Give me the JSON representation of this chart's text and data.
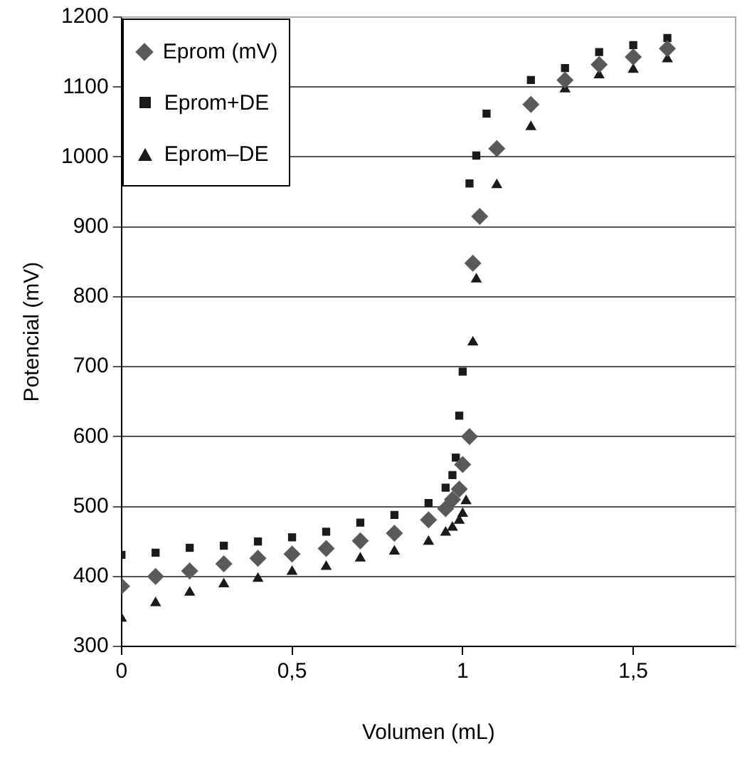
{
  "chart_data": {
    "type": "scatter",
    "xlabel": "Volumen (mL)",
    "ylabel": "Potencial (mV)",
    "xlim": [
      0,
      1.8
    ],
    "ylim": [
      300,
      1200
    ],
    "xticks": [
      {
        "value": 0,
        "label": "0"
      },
      {
        "value": 0.5,
        "label": "0,5"
      },
      {
        "value": 1,
        "label": "1"
      },
      {
        "value": 1.5,
        "label": "1,5"
      }
    ],
    "yticks": [
      300,
      400,
      500,
      600,
      700,
      800,
      900,
      1000,
      1100,
      1200
    ],
    "grid": "y",
    "legend": "top left",
    "series": [
      {
        "name": "Eprom (mV)",
        "color": "#595959",
        "marker": "diamond",
        "x": [
          0,
          0.1,
          0.2,
          0.3,
          0.4,
          0.5,
          0.6,
          0.7,
          0.8,
          0.9,
          0.95,
          0.97,
          0.99,
          1.0,
          1.02,
          1.03,
          1.05,
          1.1,
          1.2,
          1.3,
          1.4,
          1.5,
          1.6
        ],
        "values": [
          386,
          400,
          408,
          418,
          426,
          432,
          440,
          451,
          462,
          481,
          497,
          510,
          525,
          560,
          600,
          848,
          915,
          1012,
          1075,
          1110,
          1132,
          1143,
          1155
        ]
      },
      {
        "name": "Eprom+DE",
        "color": "#1a1a1a",
        "marker": "square",
        "x": [
          0,
          0.1,
          0.2,
          0.3,
          0.4,
          0.5,
          0.6,
          0.7,
          0.8,
          0.9,
          0.95,
          0.97,
          0.98,
          0.99,
          1.0,
          1.02,
          1.04,
          1.07,
          1.2,
          1.3,
          1.4,
          1.5,
          1.6
        ],
        "values": [
          431,
          434,
          441,
          444,
          450,
          456,
          464,
          477,
          488,
          505,
          527,
          545,
          570,
          630,
          693,
          962,
          1002,
          1062,
          1110,
          1127,
          1150,
          1160,
          1170
        ]
      },
      {
        "name": "Eprom–DE",
        "color": "#1a1a1a",
        "marker": "triangle",
        "x": [
          0,
          0.1,
          0.2,
          0.3,
          0.4,
          0.5,
          0.6,
          0.7,
          0.8,
          0.9,
          0.95,
          0.97,
          0.99,
          1.0,
          1.01,
          1.03,
          1.04,
          1.1,
          1.2,
          1.3,
          1.4,
          1.5,
          1.6
        ],
        "values": [
          340,
          362,
          377,
          389,
          397,
          407,
          414,
          426,
          436,
          450,
          463,
          470,
          480,
          490,
          508,
          735,
          825,
          960,
          1043,
          1097,
          1117,
          1125,
          1140
        ]
      }
    ]
  }
}
